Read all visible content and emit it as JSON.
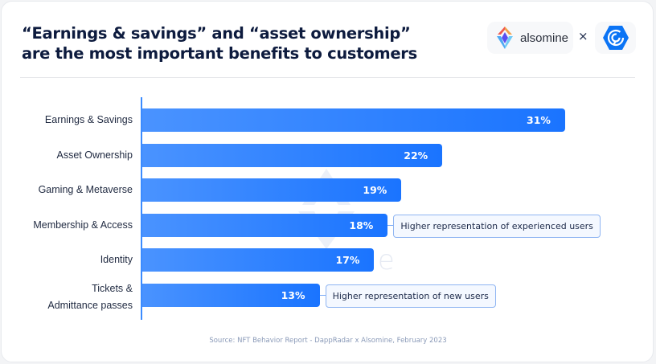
{
  "header": {
    "title_line1": "“Earnings & savings” and “asset ownership”",
    "title_line2": "are the most important benefits to customers",
    "brand_left": {
      "name": "alsomine",
      "icon": "alsomine-diamond-logo-icon"
    },
    "separator": "×",
    "brand_right": {
      "name": "DappRadar",
      "icon": "dappradar-hexagon-logo-icon"
    }
  },
  "colors": {
    "bar_start": "#4a93ff",
    "bar_end": "#1a74ff",
    "title": "#0d1b3e",
    "note_border": "#8fb5f2",
    "note_bg": "#f4f8ff",
    "source_text": "#8a9ab8"
  },
  "chart_data": {
    "type": "bar",
    "orientation": "horizontal",
    "title": "“Earnings & savings” and “asset ownership” are the most important benefits to customers",
    "xlabel": "",
    "ylabel": "",
    "xlim": [
      0,
      32
    ],
    "grid": false,
    "categories": [
      "Earnings & Savings",
      "Asset Ownership",
      "Gaming & Metaverse",
      "Membership & Access",
      "Identity",
      "Tickets & Admittance passes"
    ],
    "category_lines": [
      [
        "Earnings & Savings"
      ],
      [
        "Asset Ownership"
      ],
      [
        "Gaming & Metaverse"
      ],
      [
        "Membership & Access"
      ],
      [
        "Identity"
      ],
      [
        "Tickets &",
        "Admittance passes"
      ]
    ],
    "values": [
      31,
      22,
      19,
      18,
      17,
      13
    ],
    "value_labels": [
      "31%",
      "22%",
      "19%",
      "18%",
      "17%",
      "13%"
    ],
    "annotations": [
      {
        "category_index": 3,
        "text": "Higher representation of experienced users"
      },
      {
        "category_index": 5,
        "text": "Higher representation of new users"
      }
    ]
  },
  "watermark": "alsomine",
  "source": "Source: NFT Behavior Report - DappRadar x Alsomine, February 2023"
}
